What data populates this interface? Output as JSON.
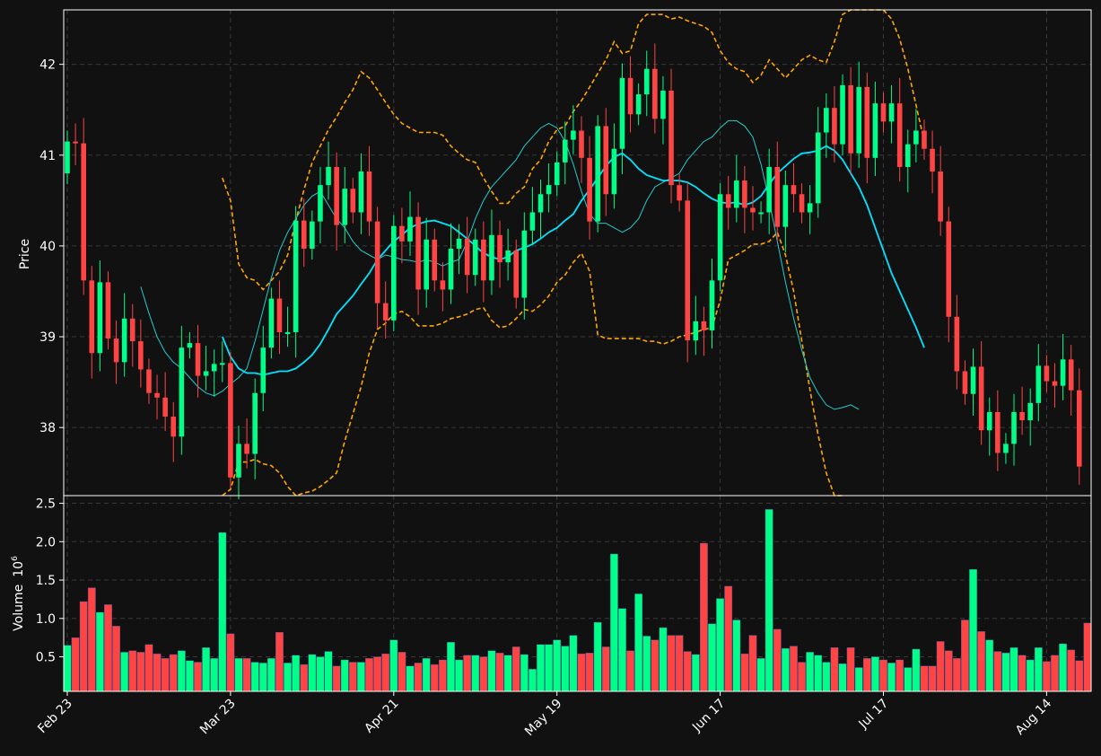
{
  "chart_data": [
    {
      "type": "candlestick",
      "panel": "price",
      "ylabel": "Price",
      "ylim": [
        37.25,
        42.6
      ],
      "yticks": [
        38,
        39,
        40,
        41,
        42
      ],
      "xticks": [
        {
          "label": "Feb 23",
          "index": 0
        },
        {
          "label": "Mar 23",
          "index": 20
        },
        {
          "label": "Apr 21",
          "index": 40
        },
        {
          "label": "May 19",
          "index": 60
        },
        {
          "label": "Jun 17",
          "index": 80
        },
        {
          "label": "Jul 17",
          "index": 100
        },
        {
          "label": "Aug 14",
          "index": 120
        }
      ],
      "grid": true,
      "colors": {
        "up": "#00ff88",
        "down": "#ff4444",
        "ma_fast": "#22cccc",
        "ma_slow": "#00e5ff",
        "bands": "#ffa500"
      },
      "series_close": [
        41.15,
        41.13,
        39.62,
        38.82,
        39.6,
        38.98,
        38.72,
        39.2,
        38.95,
        38.64,
        38.38,
        38.33,
        38.12,
        37.9,
        38.88,
        38.93,
        38.57,
        38.62,
        38.7,
        38.71,
        37.45,
        37.82,
        37.71,
        38.38,
        38.88,
        39.42,
        39.05,
        39.05,
        40.28,
        39.97,
        40.27,
        40.67,
        40.87,
        40.23,
        40.63,
        40.37,
        40.82,
        40.27,
        39.37,
        39.18,
        40.22,
        40.05,
        40.32,
        39.52,
        40.07,
        39.62,
        39.52,
        39.97,
        40.08,
        39.68,
        40.07,
        39.62,
        40.12,
        39.82,
        39.95,
        39.43,
        40.17,
        40.37,
        40.57,
        40.67,
        40.92,
        41.17,
        41.27,
        40.97,
        40.27,
        41.32,
        40.57,
        41.07,
        41.85,
        41.45,
        41.67,
        41.95,
        41.4,
        41.71,
        40.67,
        40.5,
        38.96,
        39.17,
        39.07,
        39.62,
        40.57,
        40.42,
        40.72,
        40.42,
        40.37,
        40.37,
        40.87,
        40.21,
        40.67,
        40.57,
        40.37,
        40.47,
        41.25,
        41.52,
        41.12,
        41.77,
        41.02,
        41.75,
        40.97,
        41.57,
        41.37,
        41.57,
        40.87,
        41.12,
        41.27,
        41.07,
        40.82,
        40.27,
        39.22,
        38.62,
        38.37,
        38.67,
        37.97,
        38.17,
        37.72,
        37.82,
        38.17,
        38.08,
        38.27,
        38.68,
        38.51,
        38.46,
        38.75,
        38.41,
        37.57
      ],
      "ma_fast_values": [
        39.55,
        39.26,
        39.0,
        38.83,
        38.72,
        38.65,
        38.55,
        38.45,
        38.38,
        38.35,
        38.4,
        38.48,
        38.55,
        38.65,
        38.95,
        39.3,
        39.65,
        39.95,
        40.15,
        40.3,
        40.45,
        40.55,
        40.6,
        40.45,
        40.3,
        40.2,
        40.05,
        39.95,
        39.9,
        39.85,
        39.9,
        39.88,
        39.85,
        39.84,
        39.82,
        39.85,
        39.82,
        39.78,
        39.82,
        39.85,
        40.05,
        40.3,
        40.5,
        40.65,
        40.75,
        40.85,
        40.95,
        41.1,
        41.2,
        41.3,
        41.35,
        41.3,
        41.15,
        40.9,
        40.6,
        40.35,
        40.25,
        40.25,
        40.2,
        40.15,
        40.2,
        40.3,
        40.5,
        40.65,
        40.7,
        40.75,
        40.8,
        40.95,
        41.05,
        41.15,
        41.2,
        41.3,
        41.38,
        41.38,
        41.32,
        41.2,
        40.9,
        40.5,
        40.05,
        39.6,
        39.2,
        38.85,
        38.55,
        38.38,
        38.25,
        38.2,
        38.22,
        38.25,
        38.2
      ],
      "ma_fast_start_index": 9,
      "ma_slow_values": [
        39.0,
        38.78,
        38.65,
        38.6,
        38.6,
        38.58,
        38.6,
        38.62,
        38.62,
        38.65,
        38.72,
        38.8,
        38.92,
        39.08,
        39.25,
        39.35,
        39.45,
        39.58,
        39.7,
        39.85,
        39.95,
        40.05,
        40.12,
        40.2,
        40.24,
        40.27,
        40.28,
        40.25,
        40.22,
        40.15,
        40.08,
        40.0,
        39.92,
        39.88,
        39.85,
        39.88,
        39.95,
        39.98,
        40.02,
        40.08,
        40.15,
        40.2,
        40.28,
        40.35,
        40.5,
        40.62,
        40.75,
        40.88,
        40.98,
        41.02,
        40.95,
        40.85,
        40.78,
        40.75,
        40.72,
        40.72,
        40.72,
        40.7,
        40.65,
        40.58,
        40.52,
        40.48,
        40.47,
        40.48,
        40.45,
        40.48,
        40.55,
        40.68,
        40.8,
        40.88,
        40.96,
        41.02,
        41.03,
        41.05,
        41.1,
        41.05,
        40.95,
        40.8,
        40.65,
        40.45,
        40.2,
        39.95,
        39.7,
        39.5,
        39.3,
        39.1,
        38.88
      ],
      "ma_slow_start_index": 19,
      "bb_upper_values": [
        40.75,
        40.5,
        39.8,
        39.65,
        39.62,
        39.52,
        39.62,
        39.72,
        39.9,
        40.28,
        40.62,
        40.92,
        41.1,
        41.28,
        41.42,
        41.58,
        41.72,
        41.92,
        41.85,
        41.72,
        41.58,
        41.45,
        41.35,
        41.3,
        41.25,
        41.25,
        41.25,
        41.22,
        41.1,
        41.02,
        40.95,
        40.92,
        40.75,
        40.6,
        40.47,
        40.47,
        40.58,
        40.65,
        40.85,
        40.95,
        41.15,
        41.28,
        41.32,
        41.48,
        41.6,
        41.75,
        41.9,
        42.05,
        42.25,
        42.12,
        42.15,
        42.45,
        42.55,
        42.55,
        42.55,
        42.5,
        42.52,
        42.48,
        42.45,
        42.42,
        42.35,
        42.15,
        42.02,
        41.95,
        41.92,
        41.8,
        41.88,
        42.05,
        41.95,
        41.85,
        41.95,
        42.05,
        42.1,
        42.05,
        42.02,
        42.25,
        42.55,
        42.85,
        43.1,
        43.2,
        43.05,
        42.72,
        42.5,
        42.28,
        41.95,
        41.55,
        41.15
      ],
      "bb_upper_start_index": 19,
      "bb_lower_values": [
        37.25,
        37.32,
        37.62,
        37.62,
        37.65,
        37.6,
        37.58,
        37.5,
        37.35,
        37.25,
        37.28,
        37.3,
        37.35,
        37.42,
        37.5,
        37.85,
        38.15,
        38.45,
        38.82,
        39.08,
        39.15,
        39.25,
        39.28,
        39.22,
        39.12,
        39.12,
        39.12,
        39.15,
        39.2,
        39.22,
        39.25,
        39.3,
        39.32,
        39.18,
        39.1,
        39.12,
        39.2,
        39.3,
        39.28,
        39.35,
        39.45,
        39.6,
        39.68,
        39.82,
        39.92,
        39.72,
        39.02,
        38.98,
        38.98,
        38.98,
        38.98,
        38.98,
        38.95,
        38.95,
        38.92,
        38.95,
        39.0,
        39.02,
        39.05,
        39.08,
        39.1,
        39.4,
        39.85,
        39.9,
        39.95,
        40.02,
        40.02,
        40.05,
        40.15,
        39.9,
        39.5,
        38.95,
        38.42,
        37.92,
        37.5,
        37.15,
        36.85
      ],
      "bb_lower_start_index": 19
    },
    {
      "type": "bar",
      "panel": "volume",
      "ylabel": "Volume  10^6",
      "ylabel_main": "Volume",
      "ylabel_exp": "10",
      "ylabel_pow": "6",
      "ylim": [
        0.05,
        2.6
      ],
      "yticks": [
        "0.5",
        "1.0",
        "1.5",
        "2.0",
        "2.5"
      ],
      "ytick_values": [
        0.5,
        1.0,
        1.5,
        2.0,
        2.5
      ],
      "values": [
        0.65,
        0.75,
        1.22,
        1.4,
        1.08,
        1.18,
        0.9,
        0.56,
        0.58,
        0.56,
        0.66,
        0.54,
        0.48,
        0.53,
        0.58,
        0.45,
        0.43,
        0.62,
        0.48,
        2.12,
        0.8,
        0.48,
        0.48,
        0.43,
        0.42,
        0.48,
        0.82,
        0.42,
        0.52,
        0.4,
        0.53,
        0.5,
        0.57,
        0.38,
        0.46,
        0.43,
        0.43,
        0.48,
        0.5,
        0.54,
        0.72,
        0.56,
        0.38,
        0.42,
        0.48,
        0.4,
        0.46,
        0.69,
        0.46,
        0.52,
        0.52,
        0.5,
        0.58,
        0.55,
        0.52,
        0.63,
        0.53,
        0.34,
        0.66,
        0.66,
        0.72,
        0.64,
        0.78,
        0.54,
        0.55,
        0.95,
        0.63,
        1.84,
        1.13,
        0.58,
        1.32,
        0.77,
        0.72,
        0.88,
        0.78,
        0.78,
        0.57,
        0.53,
        1.98,
        0.93,
        1.26,
        1.42,
        0.98,
        0.54,
        0.78,
        0.48,
        2.42,
        0.86,
        0.61,
        0.64,
        0.43,
        0.56,
        0.52,
        0.43,
        0.62,
        0.41,
        0.62,
        0.36,
        0.48,
        0.5,
        0.46,
        0.42,
        0.46,
        0.36,
        0.6,
        0.38,
        0.38,
        0.7,
        0.58,
        0.48,
        0.98,
        1.64,
        0.83,
        0.72,
        0.57,
        0.55,
        0.62,
        0.52,
        0.46,
        0.62,
        0.44,
        0.52,
        0.67,
        0.59,
        0.45,
        0.94
      ]
    }
  ]
}
